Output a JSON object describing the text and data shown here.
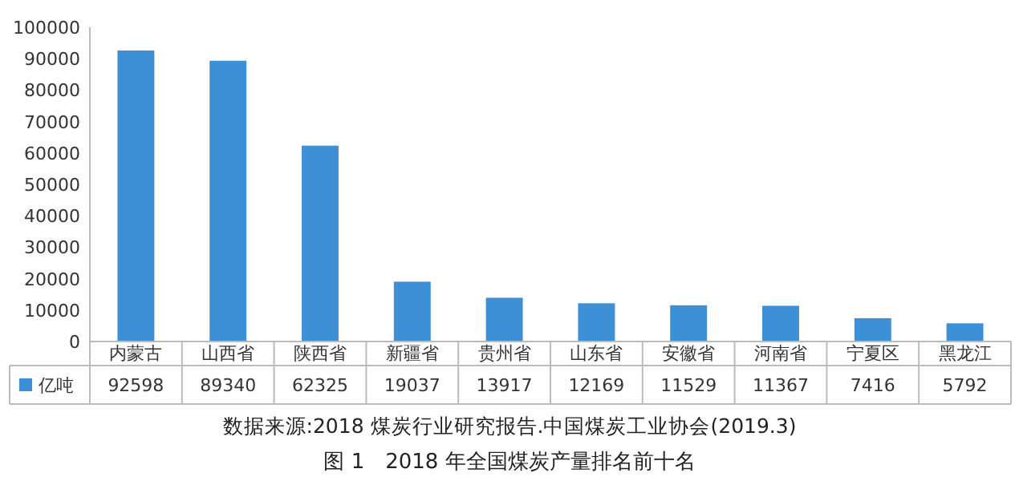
{
  "chart_data": {
    "type": "bar",
    "title": "图 1　2018 年全国煤炭产量排名前十名",
    "annotations": [
      "数据来源:2018 煤炭行业研究报告.中国煤炭工业协会(2019.3)"
    ],
    "categories": [
      "内蒙古",
      "山西省",
      "陕西省",
      "新疆省",
      "贵州省",
      "山东省",
      "安徽省",
      "河南省",
      "宁夏区",
      "黑龙江"
    ],
    "series": [
      {
        "name": "亿吨",
        "color": "#3d8fd6",
        "values": [
          92598,
          89340,
          62325,
          19037,
          13917,
          12169,
          11529,
          11367,
          7416,
          5792
        ]
      }
    ],
    "ylim": [
      0,
      100000
    ],
    "yticks": [
      0,
      10000,
      20000,
      30000,
      40000,
      50000,
      60000,
      70000,
      80000,
      90000,
      100000
    ],
    "data_labels": true,
    "legend": "bottom"
  }
}
